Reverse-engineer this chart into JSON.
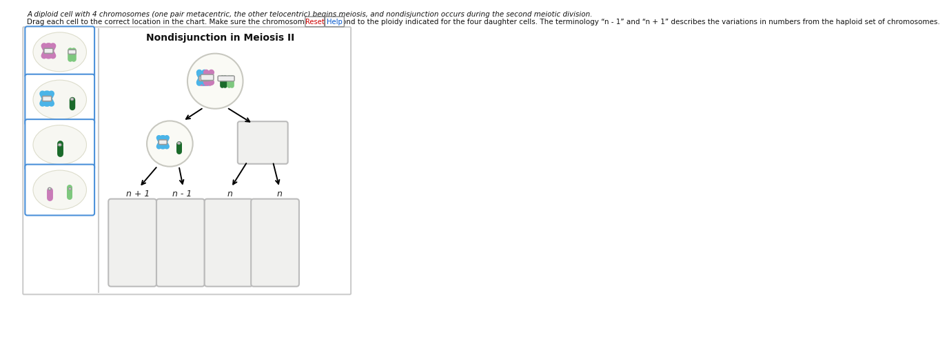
{
  "title": "Nondisjunction in Meiosis II",
  "text_line1": "A diploid cell with 4 chromosomes (one pair metacentric, the other telocentric) begins meiosis, and nondisjunction occurs during the second meiotic division.",
  "text_line2": "Drag each cell to the correct location in the chart. Make sure the chromosomes correspond to the ploidy indicated for the four daughter cells. The terminology “n - 1” and “n + 1” describes the variations in numbers from the haploid set of chromosomes.",
  "bg_color": "#ffffff",
  "blue_border": "#4a90d9",
  "pink_chr": "#c97bb8",
  "light_green_chr": "#7ec87e",
  "blue_chr": "#4ab4e8",
  "dark_green_chr": "#1a6a2a",
  "centromere_fill": "#eeeeee",
  "centromere_edge": "#999999",
  "label_n_plus": "n + 1",
  "label_n_minus": "n - 1",
  "label_n_a": "n",
  "label_n_b": "n",
  "reset_label": "Reset",
  "help_label": "Help"
}
